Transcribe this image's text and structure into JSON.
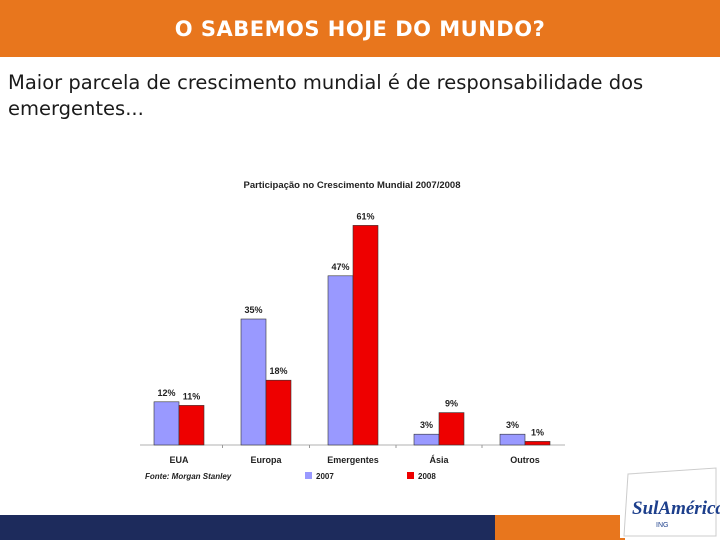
{
  "slide": {
    "title": "O SABEMOS HOJE DO MUNDO?",
    "subtitle": "Maior parcela de crescimento mundial é de responsabilidade dos emergentes..."
  },
  "logo": {
    "name": "SulAmérica",
    "tagline": "ING"
  },
  "colors": {
    "title_bar": "#E8761D",
    "footer_navy": "#1D2B5C",
    "footer_orange": "#E8761D",
    "series_2007": "#9999FF",
    "series_2008": "#EE0000"
  },
  "chart_data": {
    "type": "bar",
    "title": "Participação no Crescimento Mundial 2007/2008",
    "source": "Fonte: Morgan Stanley",
    "categories": [
      "EUA",
      "Europa",
      "Emergentes",
      "Ásia",
      "Outros"
    ],
    "series": [
      {
        "name": "2007",
        "values": [
          12,
          35,
          47,
          3,
          3
        ],
        "labels": [
          "12%",
          "35%",
          "47%",
          "3%",
          "3%"
        ]
      },
      {
        "name": "2008",
        "values": [
          11,
          18,
          61,
          9,
          1
        ],
        "labels": [
          "11%",
          "18%",
          "61%",
          "9%",
          "1%"
        ]
      }
    ],
    "ylim": [
      0,
      65
    ],
    "grid": false,
    "legend": "bottom"
  }
}
